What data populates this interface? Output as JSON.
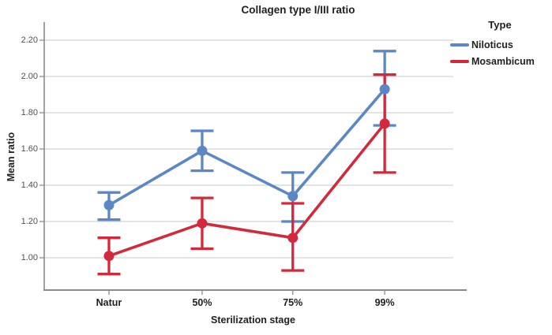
{
  "chart_data": {
    "type": "line",
    "title": "Collagen type I/III ratio",
    "xlabel": "Sterilization stage",
    "ylabel": "Mean ratio",
    "categories": [
      "Natur",
      "50%",
      "75%",
      "99%"
    ],
    "y_tick_labels": [
      "1.00",
      "1.20",
      "1.40",
      "1.60",
      "1.80",
      "2.00",
      "2.20"
    ],
    "y_ticks": [
      1.0,
      1.2,
      1.4,
      1.6,
      1.8,
      2.0,
      2.2
    ],
    "ylim": [
      0.82,
      2.29
    ],
    "grid": true,
    "legend": {
      "title": "Type",
      "position": "right"
    },
    "series": [
      {
        "name": "Niloticus",
        "color": "#5b87c5",
        "means": [
          1.29,
          1.59,
          1.34,
          1.93
        ],
        "ci_low": [
          1.21,
          1.48,
          1.2,
          1.73
        ],
        "ci_high": [
          1.36,
          1.7,
          1.47,
          2.14
        ]
      },
      {
        "name": "Mosambicum",
        "color": "#d22a3c",
        "means": [
          1.01,
          1.19,
          1.11,
          1.74
        ],
        "ci_low": [
          0.91,
          1.05,
          0.93,
          1.47
        ],
        "ci_high": [
          1.11,
          1.33,
          1.3,
          2.01
        ]
      }
    ],
    "colors": {
      "gridline": "#c9c9c9",
      "axis": "#8a8a8a",
      "tick_text": "#4f4f4f"
    }
  }
}
